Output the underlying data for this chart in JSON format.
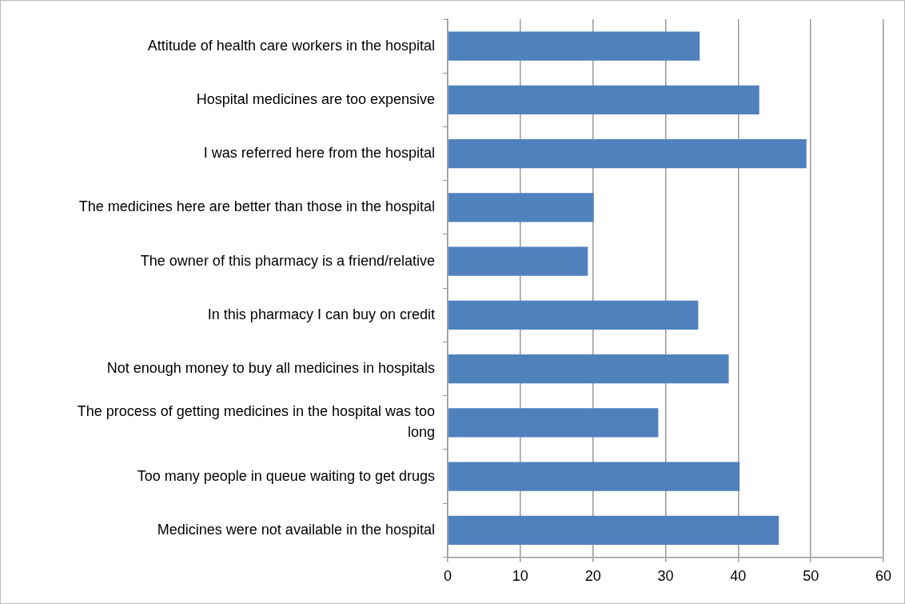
{
  "chart_data": {
    "type": "bar",
    "orientation": "horizontal",
    "categories": [
      "Attitude of health care workers in the hospital",
      "Hospital medicines are too expensive",
      "I was referred here from the hospital",
      "The medicines here are better than those in the hospital",
      "The owner of this pharmacy is a friend/relative",
      "In this pharmacy I can buy on credit",
      "Not enough money to buy all medicines in hospitals",
      "The process of getting medicines in the hospital was too long",
      "Too many people in queue waiting to get drugs",
      "Medicines were not available in the hospital"
    ],
    "values": [
      34.7,
      42.9,
      49.4,
      20.1,
      19.3,
      34.5,
      38.7,
      29.0,
      40.2,
      45.6
    ],
    "color": "#4f81bd",
    "xlim": [
      0,
      60
    ],
    "xticks": [
      0,
      10,
      20,
      30,
      40,
      50,
      60
    ],
    "grid": "x",
    "legend": false
  }
}
